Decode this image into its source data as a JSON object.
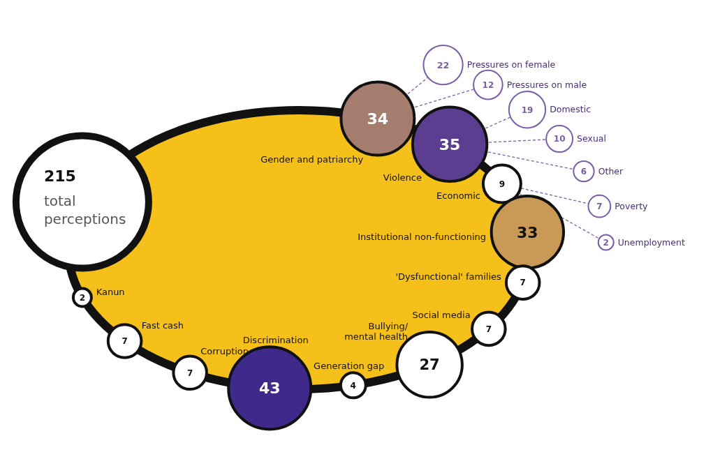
{
  "chart_data": {
    "type": "other",
    "data_labels": true,
    "categories": [
      "Gender and patriarchy",
      "Pressures on female",
      "Pressures on male",
      "Violence",
      "Domestic",
      "Sexual",
      "Other",
      "Economic",
      "Poverty",
      "Unemployment",
      "Institutional non-functioning",
      "'Dysfunctional' families",
      "Social media",
      "Bullying/\nmental health",
      "Generation gap",
      "Discrimination",
      "Corruption",
      "Fast cash",
      "Kanun"
    ],
    "series": [
      {
        "values": [
          34,
          null,
          null,
          35,
          null,
          null,
          null,
          9,
          null,
          null,
          33,
          7,
          7,
          27,
          4,
          43,
          7,
          7,
          2
        ],
        "colors": [
          "#a57d6e",
          null,
          null,
          "#5b3e8f",
          null,
          null,
          null,
          "#ffffff",
          null,
          null,
          "#c99a55",
          "#ffffff",
          "#ffffff",
          "#ffffff",
          "#ffffff",
          "#3f2a8c",
          "#ffffff",
          "#ffffff",
          "#ffffff"
        ]
      },
      {
        "color": "#7b5ea7",
        "values": [
          null,
          22,
          12,
          null,
          19,
          10,
          6,
          null,
          7,
          2,
          null,
          null,
          null,
          null,
          null,
          null,
          null,
          null,
          null
        ]
      }
    ],
    "annotations": [
      "215",
      "total perceptions"
    ]
  }
}
